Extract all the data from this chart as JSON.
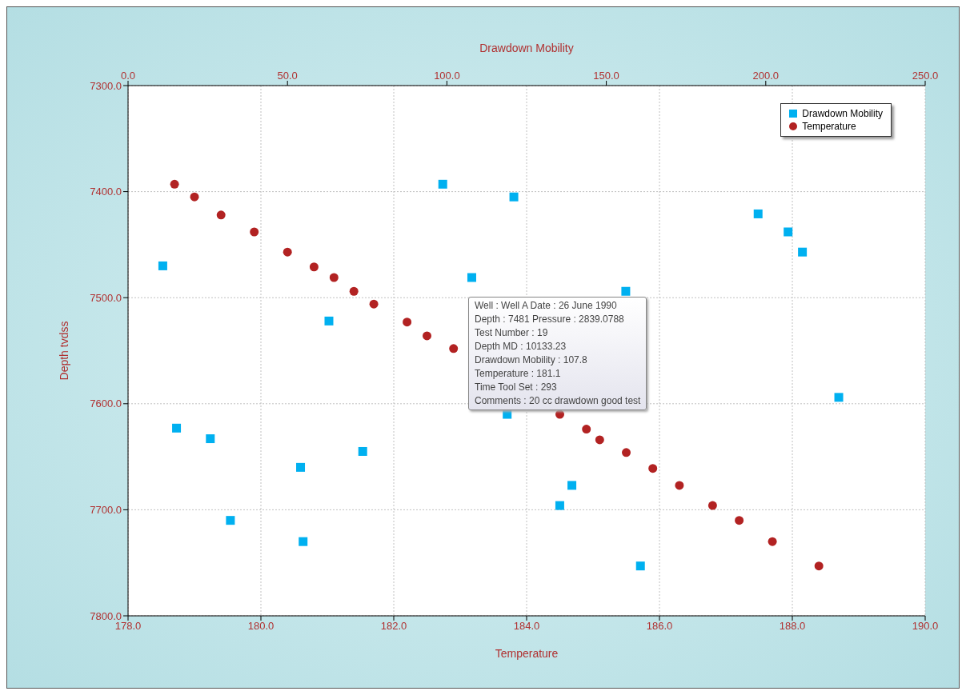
{
  "chart_data": {
    "type": "scatter",
    "xlabel": "Temperature",
    "x2label": "Drawdown Mobility",
    "ylabel": "Depth tvdss",
    "xlim": [
      178,
      190
    ],
    "xticks": [
      {
        "value": 178,
        "label": "178.0"
      },
      {
        "value": 180,
        "label": "180.0"
      },
      {
        "value": 182,
        "label": "182.0"
      },
      {
        "value": 184,
        "label": "184.0"
      },
      {
        "value": 186,
        "label": "186.0"
      },
      {
        "value": 188,
        "label": "188.0"
      },
      {
        "value": 190,
        "label": "190.0"
      }
    ],
    "x2lim": [
      0,
      250
    ],
    "x2ticks": [
      {
        "value": 0,
        "label": "0.0"
      },
      {
        "value": 50,
        "label": "50.0"
      },
      {
        "value": 100,
        "label": "100.0"
      },
      {
        "value": 150,
        "label": "150.0"
      },
      {
        "value": 200,
        "label": "200.0"
      },
      {
        "value": 250,
        "label": "250.0"
      }
    ],
    "ylim": [
      7800,
      7300
    ],
    "yticks": [
      {
        "value": 7300,
        "label": "7300.0"
      },
      {
        "value": 7400,
        "label": "7400.0"
      },
      {
        "value": 7500,
        "label": "7500.0"
      },
      {
        "value": 7600,
        "label": "7600.0"
      },
      {
        "value": 7700,
        "label": "7700.0"
      },
      {
        "value": 7800,
        "label": "7800.0"
      }
    ],
    "grid": true,
    "legend": "top right",
    "series": [
      {
        "name": "Drawdown Mobility",
        "color": "#00b0f0",
        "marker": "square",
        "axis": "x2",
        "x": [
          10.9,
          15.2,
          25.8,
          32.1,
          54.1,
          54.9,
          63.0,
          73.6,
          98.7,
          107.8,
          118.9,
          121.0,
          135.4,
          139.2,
          156.1,
          160.7,
          197.6,
          207.0,
          211.5,
          222.9
        ],
        "values": [
          7470,
          7623,
          7633,
          7710,
          7660,
          7730,
          7522,
          7645,
          7393,
          7481,
          7610,
          7405,
          7696,
          7677,
          7494,
          7753,
          7421,
          7438,
          7457,
          7594
        ]
      },
      {
        "name": "Temperature",
        "color": "#b22222",
        "marker": "circle",
        "x": [
          178.7,
          179.0,
          179.4,
          179.9,
          180.4,
          180.8,
          181.1,
          181.4,
          181.7,
          182.2,
          182.5,
          182.9,
          184.5,
          184.9,
          185.1,
          185.5,
          185.9,
          186.3,
          186.8,
          187.2,
          187.7,
          188.4
        ],
        "values": [
          7393,
          7405,
          7422,
          7438,
          7457,
          7471,
          7481,
          7494,
          7506,
          7523,
          7536,
          7548,
          7610,
          7624,
          7634,
          7646,
          7661,
          7677,
          7696,
          7710,
          7730,
          7753
        ]
      }
    ],
    "annotations": [
      "Well : Well A  Date : 26 June 1990",
      "Depth : 7481  Pressure : 2839.0788",
      "Test Number : 19",
      "Depth MD : 10133.23",
      "Drawdown Mobility : 107.8",
      "Temperature : 181.1",
      "Time Tool Set : 293",
      "Comments : 20 cc drawdown good test"
    ]
  }
}
